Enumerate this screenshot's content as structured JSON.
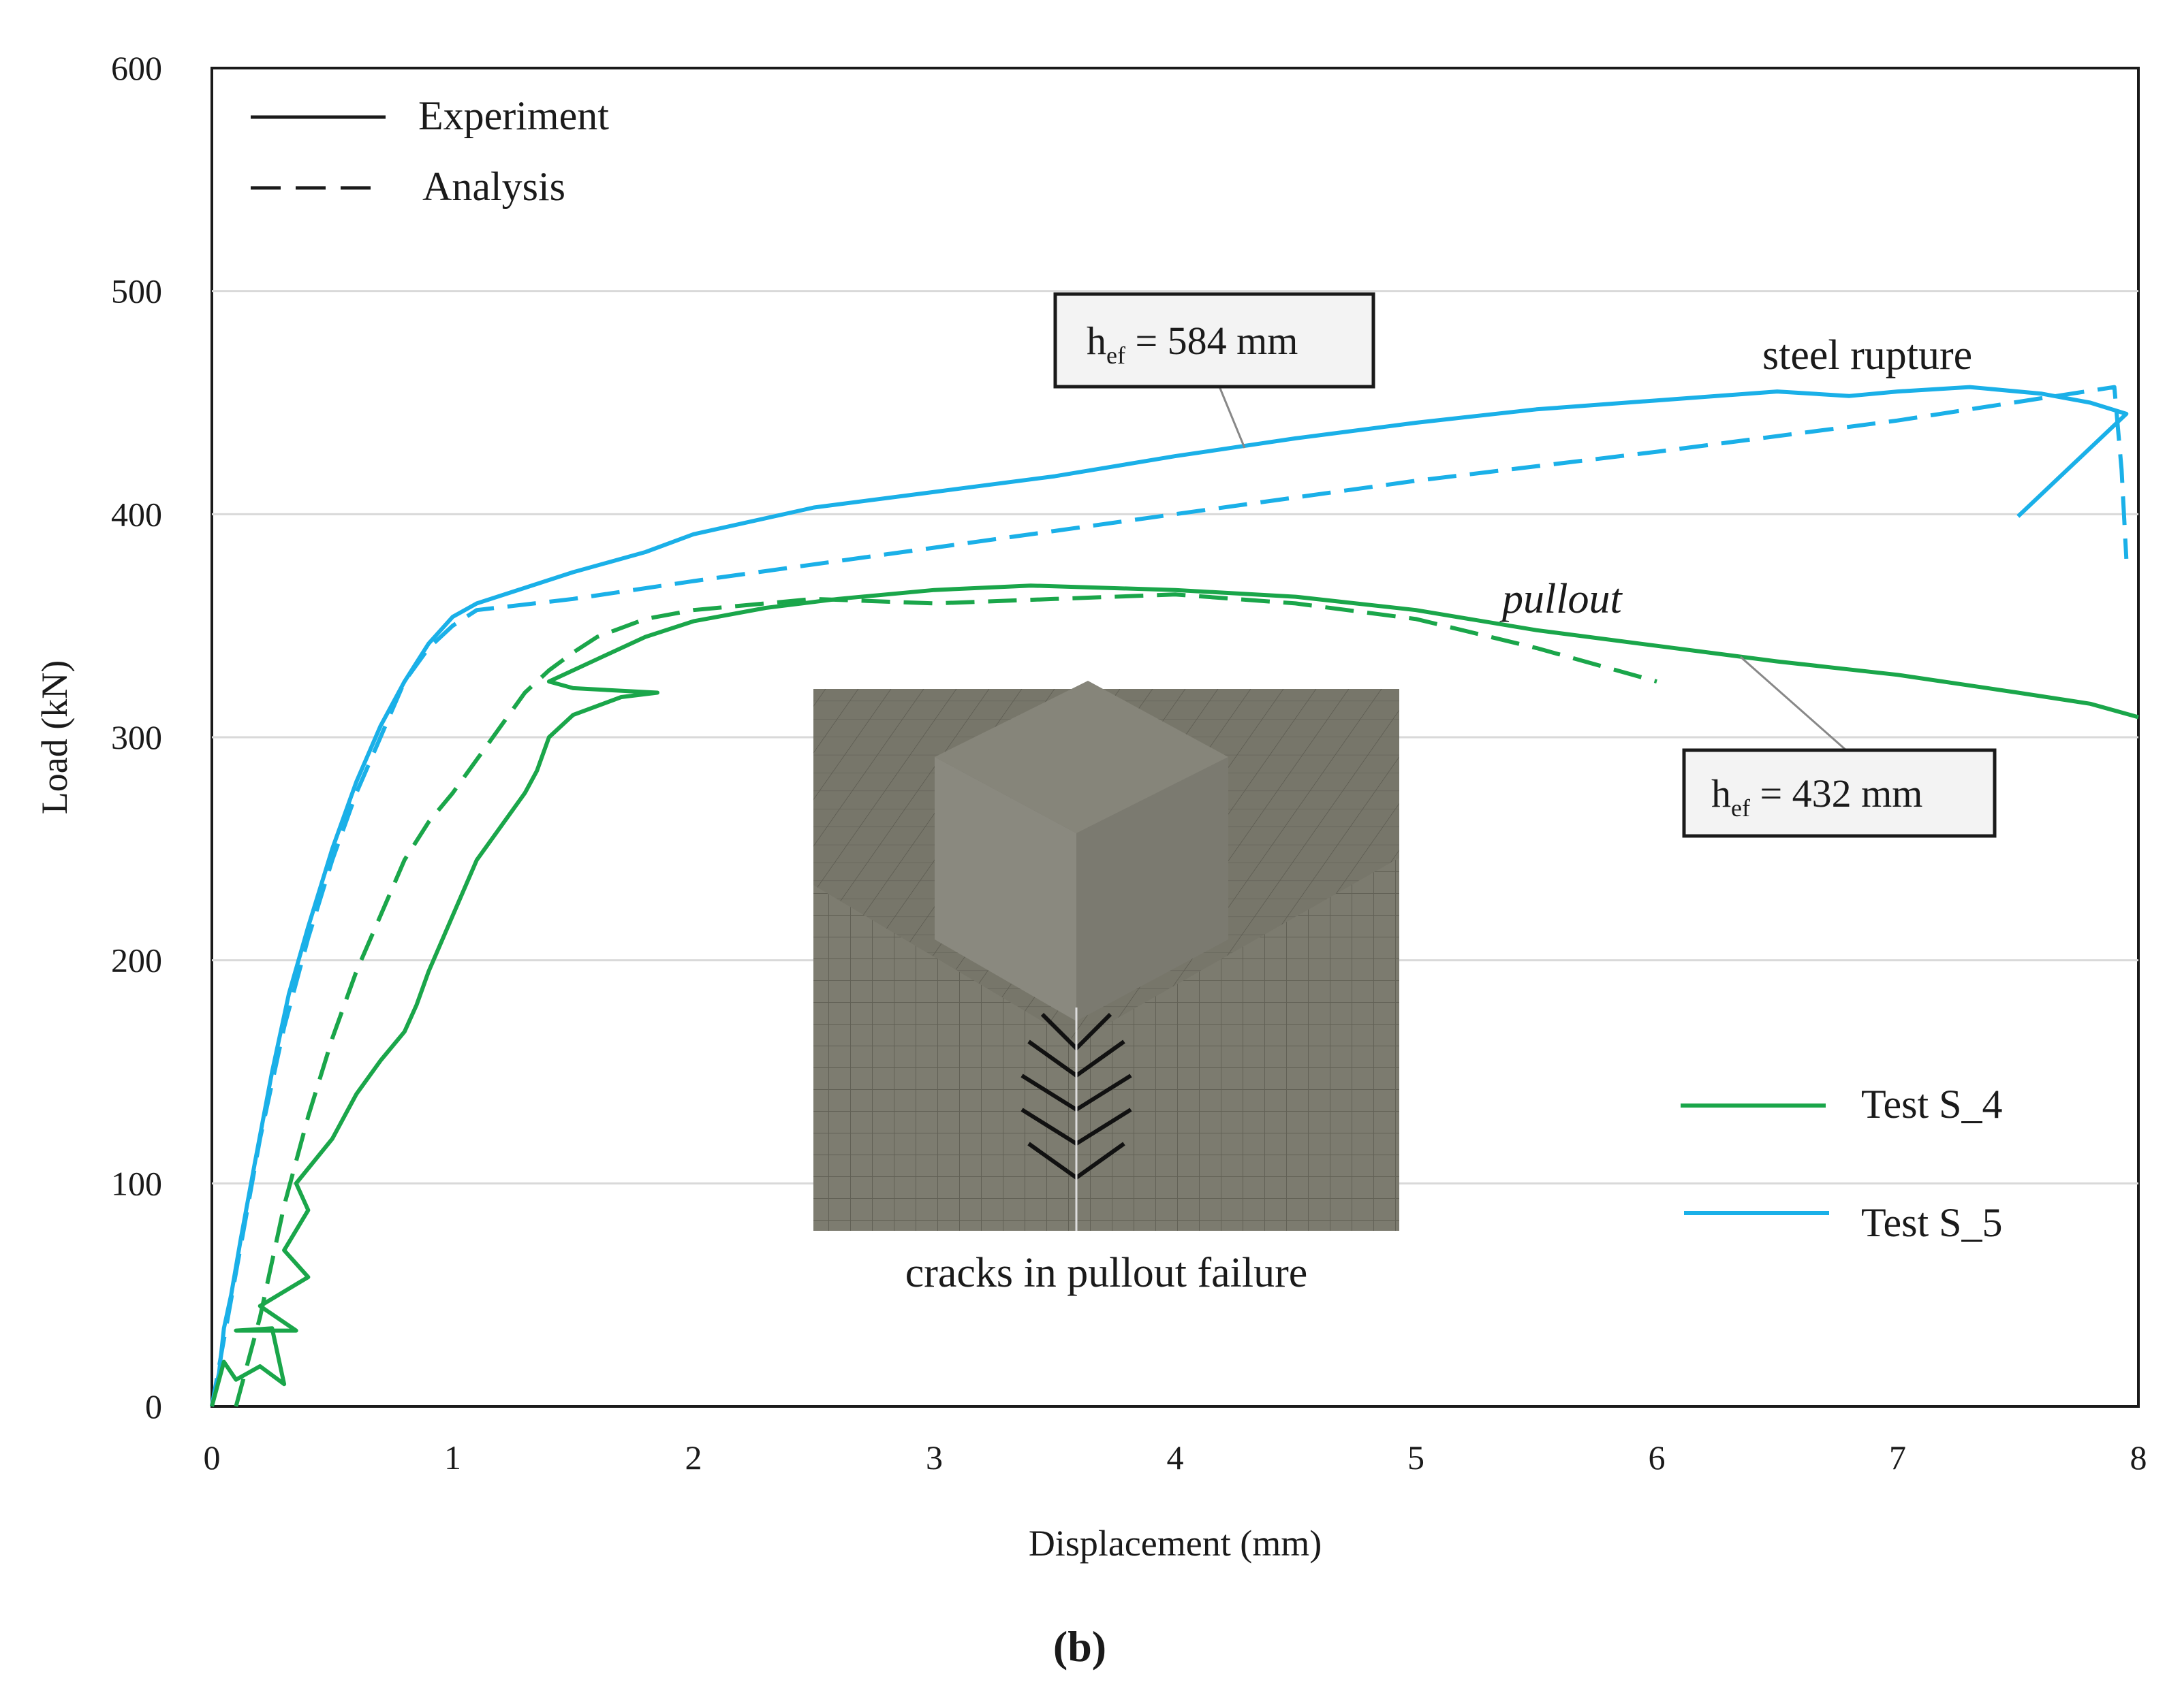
{
  "chart_data": {
    "type": "line",
    "panel_label": "(b)",
    "xlabel": "Displacement (mm)",
    "ylabel": "Load (kN)",
    "xlim": [
      0,
      8
    ],
    "ylim": [
      0,
      600
    ],
    "xticks": [
      0,
      1,
      2,
      3,
      4,
      5,
      6,
      7,
      8
    ],
    "yticks": [
      0,
      100,
      200,
      300,
      400,
      500,
      600
    ],
    "grid": "horizontal",
    "style_legend": [
      {
        "label": "Experiment",
        "dash": "solid"
      },
      {
        "label": "Analysis",
        "dash": "dashed"
      }
    ],
    "color_legend": [
      {
        "label": "Test S_4",
        "color": "#1aa64a"
      },
      {
        "label": "Test S_5",
        "color": "#1ab0e8"
      }
    ],
    "annotations": {
      "steel_rupture": "steel rupture",
      "pullout": "pullout",
      "hef_584": {
        "symbol": "h",
        "subscript": "ef",
        "rest": " = 584 mm"
      },
      "hef_432": {
        "symbol": "h",
        "subscript": "ef",
        "rest": " = 432 mm"
      },
      "inset_caption": "cracks in pullout failure"
    },
    "series": [
      {
        "name": "Test S_5",
        "kind": "Experiment",
        "color": "#1ab0e8",
        "points": [
          [
            0.0,
            0
          ],
          [
            0.03,
            15
          ],
          [
            0.05,
            35
          ],
          [
            0.08,
            50
          ],
          [
            0.12,
            75
          ],
          [
            0.18,
            110
          ],
          [
            0.25,
            150
          ],
          [
            0.32,
            185
          ],
          [
            0.4,
            215
          ],
          [
            0.5,
            250
          ],
          [
            0.6,
            280
          ],
          [
            0.7,
            305
          ],
          [
            0.8,
            325
          ],
          [
            0.9,
            342
          ],
          [
            1.0,
            354
          ],
          [
            1.1,
            360
          ],
          [
            1.3,
            367
          ],
          [
            1.5,
            374
          ],
          [
            1.8,
            383
          ],
          [
            2.0,
            391
          ],
          [
            2.5,
            403
          ],
          [
            3.0,
            410
          ],
          [
            3.5,
            417
          ],
          [
            4.0,
            426
          ],
          [
            4.5,
            434
          ],
          [
            5.0,
            441
          ],
          [
            5.5,
            447
          ],
          [
            6.0,
            451
          ],
          [
            6.5,
            455
          ],
          [
            6.8,
            453
          ],
          [
            7.0,
            455
          ],
          [
            7.3,
            457
          ],
          [
            7.6,
            454
          ],
          [
            7.8,
            450
          ],
          [
            7.95,
            445
          ],
          [
            7.5,
            399
          ]
        ]
      },
      {
        "name": "Test S_5",
        "kind": "Analysis",
        "color": "#1ab0e8",
        "points": [
          [
            0.0,
            0
          ],
          [
            0.1,
            60
          ],
          [
            0.2,
            120
          ],
          [
            0.3,
            170
          ],
          [
            0.4,
            210
          ],
          [
            0.5,
            245
          ],
          [
            0.6,
            275
          ],
          [
            0.7,
            300
          ],
          [
            0.8,
            325
          ],
          [
            0.9,
            340
          ],
          [
            1.0,
            350
          ],
          [
            1.1,
            357
          ],
          [
            1.5,
            362
          ],
          [
            2.0,
            370
          ],
          [
            3.0,
            385
          ],
          [
            4.0,
            400
          ],
          [
            5.0,
            415
          ],
          [
            6.0,
            428
          ],
          [
            7.0,
            442
          ],
          [
            7.6,
            452
          ],
          [
            7.9,
            457
          ],
          [
            7.93,
            420
          ],
          [
            7.95,
            380
          ]
        ]
      },
      {
        "name": "Test S_4",
        "kind": "Experiment",
        "color": "#1aa64a",
        "points": [
          [
            0.0,
            0
          ],
          [
            0.05,
            20
          ],
          [
            0.1,
            12
          ],
          [
            0.2,
            18
          ],
          [
            0.3,
            10
          ],
          [
            0.25,
            35
          ],
          [
            0.1,
            34
          ],
          [
            0.35,
            34
          ],
          [
            0.2,
            45
          ],
          [
            0.4,
            58
          ],
          [
            0.3,
            70
          ],
          [
            0.4,
            88
          ],
          [
            0.35,
            100
          ],
          [
            0.5,
            120
          ],
          [
            0.6,
            140
          ],
          [
            0.7,
            155
          ],
          [
            0.8,
            168
          ],
          [
            0.85,
            180
          ],
          [
            0.9,
            195
          ],
          [
            1.0,
            220
          ],
          [
            1.1,
            245
          ],
          [
            1.2,
            260
          ],
          [
            1.3,
            275
          ],
          [
            1.35,
            285
          ],
          [
            1.4,
            300
          ],
          [
            1.5,
            310
          ],
          [
            1.7,
            318
          ],
          [
            1.85,
            320
          ],
          [
            1.5,
            322
          ],
          [
            1.4,
            325
          ],
          [
            1.6,
            335
          ],
          [
            1.8,
            345
          ],
          [
            2.0,
            352
          ],
          [
            2.3,
            358
          ],
          [
            2.6,
            362
          ],
          [
            3.0,
            366
          ],
          [
            3.4,
            368
          ],
          [
            4.0,
            366
          ],
          [
            4.5,
            363
          ],
          [
            5.0,
            357
          ],
          [
            5.5,
            348
          ],
          [
            6.0,
            341
          ],
          [
            6.5,
            334
          ],
          [
            7.0,
            328
          ],
          [
            7.5,
            320
          ],
          [
            7.8,
            315
          ],
          [
            8.0,
            309
          ]
        ]
      },
      {
        "name": "Test S_4",
        "kind": "Analysis",
        "color": "#1aa64a",
        "points": [
          [
            0.1,
            0
          ],
          [
            0.2,
            40
          ],
          [
            0.3,
            90
          ],
          [
            0.4,
            130
          ],
          [
            0.5,
            165
          ],
          [
            0.6,
            195
          ],
          [
            0.7,
            220
          ],
          [
            0.8,
            245
          ],
          [
            0.9,
            262
          ],
          [
            1.0,
            275
          ],
          [
            1.1,
            290
          ],
          [
            1.2,
            305
          ],
          [
            1.3,
            320
          ],
          [
            1.4,
            330
          ],
          [
            1.5,
            338
          ],
          [
            1.6,
            345
          ],
          [
            1.8,
            353
          ],
          [
            2.0,
            357
          ],
          [
            2.5,
            362
          ],
          [
            3.0,
            360
          ],
          [
            3.5,
            362
          ],
          [
            4.0,
            364
          ],
          [
            4.5,
            360
          ],
          [
            5.0,
            353
          ],
          [
            5.5,
            340
          ],
          [
            6.0,
            325
          ]
        ]
      }
    ]
  }
}
